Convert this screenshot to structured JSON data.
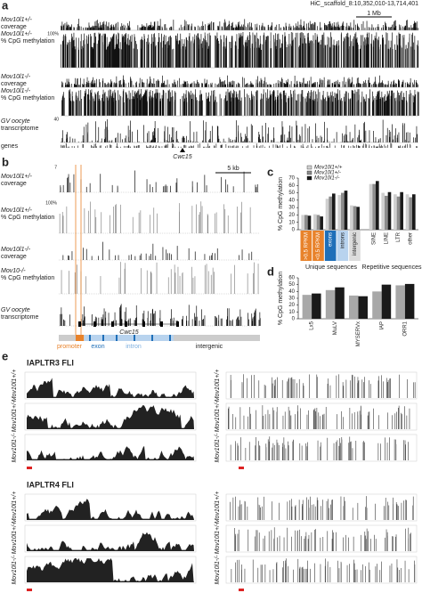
{
  "panel_a": {
    "label": "a",
    "locus": "HiC_scaffold_8:10,352,010-13,714,401",
    "scale": "1 Mb",
    "tracks": [
      [
        "Mov10l1+/-",
        "coverage"
      ],
      [
        "Mov10l1+/-",
        "% CpG methylation"
      ],
      [
        "Mov10l1-/-",
        "coverage"
      ],
      [
        "Mov10l1-/-",
        "% CpG methylation"
      ],
      [
        "GV oocyte",
        "transcriptome"
      ]
    ],
    "axis_labels": [
      "100%",
      "40"
    ],
    "genes_label": "genes",
    "gene": "Cwc15"
  },
  "panel_b": {
    "label": "b",
    "scale": "5 kb",
    "tracks": [
      [
        "Mov10l1+/-",
        "coverage"
      ],
      [
        "Mov10l1+/-",
        "% CpG methylation"
      ],
      [
        "Mov10l1-/-",
        "coverage"
      ],
      [
        "Mov10-/-",
        "% CpG methylation"
      ],
      [
        "GV oocyte",
        "transcriptome"
      ]
    ],
    "axis_labels": [
      "100%",
      "7"
    ],
    "gene": "Cwc15",
    "legend": [
      "promoter",
      "exon",
      "intron",
      "intergenic"
    ]
  },
  "chart_data": [
    {
      "type": "bar",
      "label": "c",
      "ylabel": "% CpG methylation",
      "categories": [
        "promoter >0.5 RPKM",
        "promoter <0.5 RPKM",
        "exons",
        "introns",
        "intergenic",
        "SINE",
        "LINE",
        "LTR",
        "other"
      ],
      "group_labels": [
        "Unique sequences",
        "Repetitive sequences"
      ],
      "series": [
        {
          "name": "Mov10l1+/+",
          "color": "#d0d0d0",
          "values": [
            20,
            21,
            42,
            47,
            33,
            62,
            50,
            48,
            48
          ]
        },
        {
          "name": "Mov10l1+/-",
          "color": "#8c8c8c",
          "values": [
            20,
            20,
            45,
            50,
            32,
            62,
            46,
            45,
            44
          ]
        },
        {
          "name": "Mov10l1-/-",
          "color": "#1a1a1a",
          "values": [
            19,
            18,
            49,
            53,
            31,
            66,
            51,
            51,
            48
          ]
        }
      ],
      "ylim": [
        0,
        70
      ],
      "yticks": [
        0,
        10,
        20,
        30,
        40,
        50,
        60,
        70
      ]
    },
    {
      "type": "bar",
      "label": "d",
      "ylabel": "% CpG methylation",
      "categories": [
        "Lx5",
        "MuLV",
        "MYSERVx",
        "IAP",
        "ORR1"
      ],
      "series": [
        {
          "color": "#a8a8a8",
          "values": [
            35,
            42,
            34,
            40,
            49
          ]
        },
        {
          "color": "#1a1a1a",
          "values": [
            37,
            46,
            33,
            50,
            51
          ]
        }
      ],
      "ylim": [
        0,
        60
      ],
      "yticks": [
        0,
        10,
        20,
        30,
        40,
        50,
        60
      ]
    }
  ],
  "panel_e": {
    "label": "e",
    "blocks": [
      {
        "title": "IAPLTR3 FLI",
        "rows": [
          "Mov10l1+/+",
          "Mov10l1+/-",
          "Mov10l1-/-"
        ]
      },
      {
        "title": "IAPLTR4 FLI",
        "rows": [
          "Mov10l1+/+",
          "Mov10l1+/-",
          "Mov10l1-/-"
        ]
      }
    ]
  }
}
